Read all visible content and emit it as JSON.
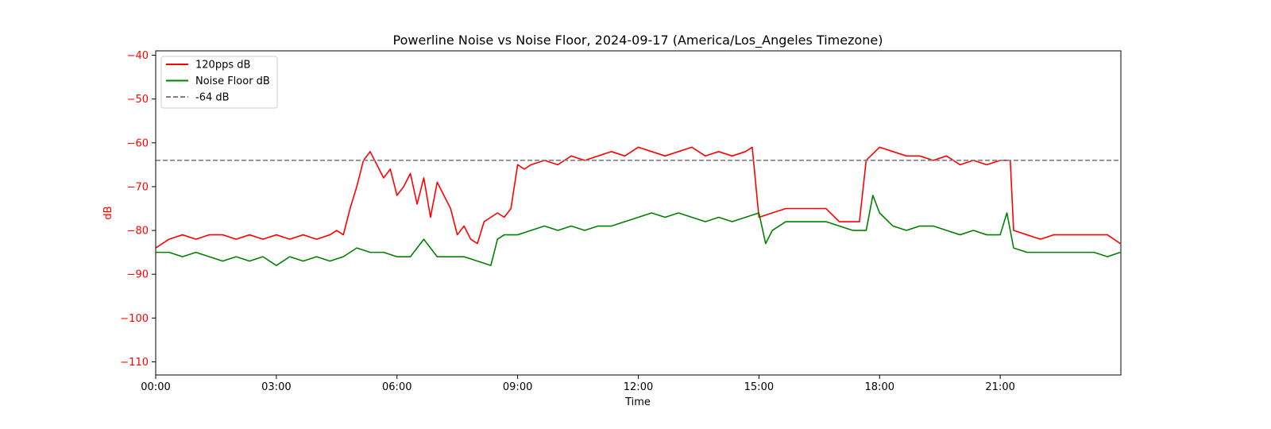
{
  "chart_data": {
    "type": "line",
    "title": "Powerline Noise vs Noise Floor, 2024-09-17 (America/Los_Angeles Timezone)",
    "xlabel": "Time",
    "ylabel": "dB",
    "x_ticks": [
      "00:00",
      "03:00",
      "06:00",
      "09:00",
      "12:00",
      "15:00",
      "18:00",
      "21:00"
    ],
    "y_ticks": [
      -40,
      -50,
      -60,
      -70,
      -80,
      -90,
      -100,
      -110
    ],
    "ylim": [
      -113,
      -39
    ],
    "xlim": [
      "00:00",
      "24:00"
    ],
    "legend_location": "upper-left",
    "grid": false,
    "series": [
      {
        "name": "120pps dB",
        "color": "#ff0000",
        "style": "solid",
        "x": [
          "00:00",
          "00:20",
          "00:40",
          "01:00",
          "01:20",
          "01:40",
          "02:00",
          "02:20",
          "02:40",
          "03:00",
          "03:20",
          "03:40",
          "04:00",
          "04:20",
          "04:30",
          "04:40",
          "04:50",
          "05:00",
          "05:10",
          "05:20",
          "05:30",
          "05:40",
          "05:50",
          "06:00",
          "06:10",
          "06:20",
          "06:30",
          "06:40",
          "06:50",
          "07:00",
          "07:10",
          "07:20",
          "07:30",
          "07:40",
          "07:50",
          "08:00",
          "08:10",
          "08:20",
          "08:30",
          "08:40",
          "08:50",
          "09:00",
          "09:10",
          "09:20",
          "09:40",
          "10:00",
          "10:20",
          "10:40",
          "11:00",
          "11:20",
          "11:40",
          "12:00",
          "12:20",
          "12:40",
          "13:00",
          "13:20",
          "13:40",
          "14:00",
          "14:20",
          "14:40",
          "14:50",
          "15:00",
          "15:20",
          "15:40",
          "16:00",
          "16:20",
          "16:40",
          "17:00",
          "17:20",
          "17:30",
          "17:40",
          "18:00",
          "18:20",
          "18:40",
          "19:00",
          "19:20",
          "19:40",
          "20:00",
          "20:20",
          "20:40",
          "21:00",
          "21:15",
          "21:20",
          "21:40",
          "22:00",
          "22:20",
          "22:40",
          "23:00",
          "23:20",
          "23:40",
          "23:59"
        ],
        "y": [
          -84,
          -82,
          -81,
          -82,
          -81,
          -81,
          -82,
          -81,
          -82,
          -81,
          -82,
          -81,
          -82,
          -81,
          -80,
          -81,
          -75,
          -70,
          -64,
          -62,
          -65,
          -68,
          -66,
          -72,
          -70,
          -67,
          -74,
          -68,
          -77,
          -69,
          -72,
          -75,
          -81,
          -79,
          -82,
          -83,
          -78,
          -77,
          -76,
          -77,
          -75,
          -65,
          -66,
          -65,
          -64,
          -65,
          -63,
          -64,
          -63,
          -62,
          -63,
          -61,
          -62,
          -63,
          -62,
          -61,
          -63,
          -62,
          -63,
          -62,
          -61,
          -77,
          -76,
          -75,
          -75,
          -75,
          -75,
          -78,
          -78,
          -78,
          -64,
          -61,
          -62,
          -63,
          -63,
          -64,
          -63,
          -65,
          -64,
          -65,
          -64,
          -64,
          -80,
          -81,
          -82,
          -81,
          -81,
          -81,
          -81,
          -81,
          -83
        ]
      },
      {
        "name": "Noise Floor dB",
        "color": "#008000",
        "style": "solid",
        "x": [
          "00:00",
          "00:20",
          "00:40",
          "01:00",
          "01:20",
          "01:40",
          "02:00",
          "02:20",
          "02:40",
          "03:00",
          "03:20",
          "03:40",
          "04:00",
          "04:20",
          "04:40",
          "05:00",
          "05:20",
          "05:40",
          "06:00",
          "06:20",
          "06:40",
          "07:00",
          "07:20",
          "07:40",
          "08:00",
          "08:20",
          "08:30",
          "08:40",
          "09:00",
          "09:20",
          "09:40",
          "10:00",
          "10:20",
          "10:40",
          "11:00",
          "11:20",
          "11:40",
          "12:00",
          "12:20",
          "12:40",
          "13:00",
          "13:20",
          "13:40",
          "14:00",
          "14:20",
          "14:40",
          "15:00",
          "15:10",
          "15:20",
          "15:40",
          "16:00",
          "16:20",
          "16:40",
          "17:00",
          "17:20",
          "17:40",
          "17:50",
          "18:00",
          "18:20",
          "18:40",
          "19:00",
          "19:20",
          "19:40",
          "20:00",
          "20:20",
          "20:40",
          "21:00",
          "21:10",
          "21:20",
          "21:40",
          "22:00",
          "22:20",
          "22:40",
          "23:00",
          "23:20",
          "23:40",
          "23:59"
        ],
        "y": [
          -85,
          -85,
          -86,
          -85,
          -86,
          -87,
          -86,
          -87,
          -86,
          -88,
          -86,
          -87,
          -86,
          -87,
          -86,
          -84,
          -85,
          -85,
          -86,
          -86,
          -82,
          -86,
          -86,
          -86,
          -87,
          -88,
          -82,
          -81,
          -81,
          -80,
          -79,
          -80,
          -79,
          -80,
          -79,
          -79,
          -78,
          -77,
          -76,
          -77,
          -76,
          -77,
          -78,
          -77,
          -78,
          -77,
          -76,
          -83,
          -80,
          -78,
          -78,
          -78,
          -78,
          -79,
          -80,
          -80,
          -72,
          -76,
          -79,
          -80,
          -79,
          -79,
          -80,
          -81,
          -80,
          -81,
          -81,
          -76,
          -84,
          -85,
          -85,
          -85,
          -85,
          -85,
          -85,
          -86,
          -85
        ]
      },
      {
        "name": "-64 dB",
        "color": "#808080",
        "style": "dashed",
        "x": [
          "00:00",
          "23:59"
        ],
        "y": [
          -64,
          -64
        ]
      }
    ]
  }
}
